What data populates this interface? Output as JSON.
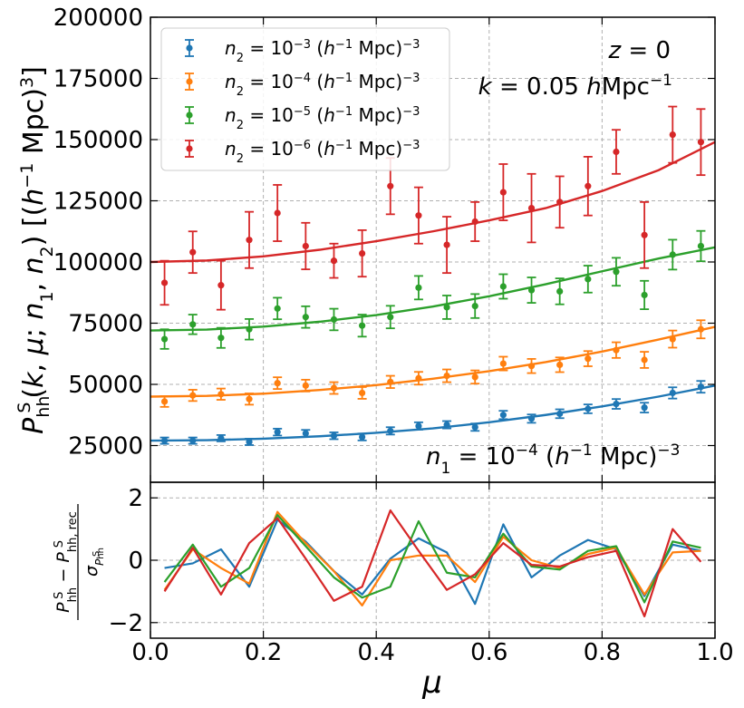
{
  "chart_data": [
    {
      "type": "line+errorbar",
      "panel": "top",
      "xlabel": "μ",
      "ylabel": "P_hh^S(k, μ; n1, n2) [(h^-1 Mpc)^3]",
      "xlim": [
        0.0,
        1.0
      ],
      "ylim": [
        10000,
        200000
      ],
      "xticks": [
        "0.0",
        "0.2",
        "0.4",
        "0.6",
        "0.8",
        "1.0"
      ],
      "yticks": [
        "25000",
        "50000",
        "75000",
        "100000",
        "125000",
        "150000",
        "175000",
        "200000"
      ],
      "grid": true,
      "legend_position": "top-left",
      "annotations": [
        "z = 0",
        "k = 0.05 hMpc^-1",
        "n1 = 10^-4 (h^-1 Mpc)^-3"
      ],
      "annotations_display": {
        "z": [
          "z",
          " = 0"
        ],
        "k": [
          "k",
          " = 0.05 ",
          "h",
          "Mpc",
          "−1"
        ],
        "n1": [
          "n",
          "1",
          " = 10",
          "−4",
          " (",
          "h",
          "−1",
          " Mpc)",
          "−3"
        ]
      },
      "x": [
        0.025,
        0.075,
        0.125,
        0.175,
        0.225,
        0.275,
        0.325,
        0.375,
        0.425,
        0.475,
        0.525,
        0.575,
        0.625,
        0.675,
        0.725,
        0.775,
        0.825,
        0.875,
        0.925,
        0.975
      ],
      "series": [
        {
          "name": "n2 = 10^-3 (h^-1 Mpc)^-3",
          "label_display": [
            "n",
            "2",
            " = 10",
            "−3",
            " (",
            "h",
            "−1",
            " Mpc)",
            "−3"
          ],
          "color": "#1f77b4",
          "points": [
            27000,
            27000,
            28000,
            26500,
            30500,
            30000,
            29000,
            28500,
            31000,
            33000,
            33500,
            32500,
            37500,
            36000,
            38000,
            40000,
            42000,
            40500,
            46500,
            49000
          ],
          "errors": [
            1300,
            1300,
            1300,
            1300,
            1400,
            1400,
            1400,
            1400,
            1500,
            1500,
            1500,
            1500,
            1700,
            1700,
            1800,
            1800,
            2000,
            2000,
            2300,
            2400
          ],
          "model": [
            [
              0,
              27000
            ],
            [
              0.1,
              27200
            ],
            [
              0.2,
              27800
            ],
            [
              0.3,
              28800
            ],
            [
              0.4,
              30200
            ],
            [
              0.5,
              32000
            ],
            [
              0.6,
              34500
            ],
            [
              0.7,
              37500
            ],
            [
              0.8,
              41000
            ],
            [
              0.9,
              45000
            ],
            [
              1.0,
              49500
            ]
          ]
        },
        {
          "name": "n2 = 10^-4 (h^-1 Mpc)^-3",
          "label_display": [
            "n",
            "2",
            " = 10",
            "−4",
            " (",
            "h",
            "−1",
            " Mpc)",
            "−3"
          ],
          "color": "#ff7f0e",
          "points": [
            43000,
            45500,
            46000,
            44000,
            50500,
            49500,
            48500,
            46500,
            51000,
            52500,
            53500,
            53000,
            58500,
            57500,
            58000,
            60500,
            64000,
            60000,
            68500,
            72500
          ],
          "errors": [
            2200,
            2300,
            2300,
            2300,
            2400,
            2400,
            2400,
            2400,
            2500,
            2600,
            2600,
            2700,
            2800,
            2900,
            3000,
            3100,
            3200,
            3300,
            3500,
            3700
          ],
          "model": [
            [
              0,
              45000
            ],
            [
              0.1,
              45300
            ],
            [
              0.2,
              46200
            ],
            [
              0.3,
              47700
            ],
            [
              0.4,
              49700
            ],
            [
              0.5,
              52300
            ],
            [
              0.6,
              55400
            ],
            [
              0.7,
              59100
            ],
            [
              0.8,
              63400
            ],
            [
              0.9,
              68300
            ],
            [
              1.0,
              73500
            ]
          ]
        },
        {
          "name": "n2 = 10^-5 (h^-1 Mpc)^-3",
          "label_display": [
            "n",
            "2",
            " = 10",
            "−5",
            " (",
            "h",
            "−1",
            " Mpc)",
            "−3"
          ],
          "color": "#2ca02c",
          "points": [
            68500,
            74500,
            69000,
            72500,
            81000,
            77500,
            76500,
            74000,
            77500,
            89500,
            81500,
            82000,
            90000,
            88500,
            88000,
            93000,
            96000,
            86500,
            103000,
            106500
          ],
          "errors": [
            4000,
            4000,
            4100,
            4200,
            4400,
            4400,
            4400,
            4500,
            4600,
            4800,
            4800,
            4900,
            5000,
            5200,
            5300,
            5500,
            5700,
            5800,
            6100,
            6200
          ],
          "model": [
            [
              0,
              72000
            ],
            [
              0.1,
              72400
            ],
            [
              0.2,
              73600
            ],
            [
              0.3,
              75600
            ],
            [
              0.4,
              78300
            ],
            [
              0.5,
              81800
            ],
            [
              0.6,
              86000
            ],
            [
              0.7,
              90900
            ],
            [
              0.8,
              96200
            ],
            [
              0.9,
              101400
            ],
            [
              1.0,
              106000
            ]
          ]
        },
        {
          "name": "n2 = 10^-6 (h^-1 Mpc)^-3",
          "label_display": [
            "n",
            "2",
            " = 10",
            "−6",
            " (",
            "h",
            "−1",
            " Mpc)",
            "−3"
          ],
          "color": "#d62728",
          "points": [
            91500,
            104000,
            90500,
            109000,
            120000,
            106500,
            100500,
            103500,
            131000,
            119000,
            107000,
            116500,
            128500,
            122000,
            124500,
            131000,
            145000,
            111000,
            152000,
            149000
          ],
          "errors": [
            9000,
            8500,
            10000,
            11500,
            11500,
            9500,
            7000,
            9500,
            11500,
            11500,
            11500,
            8000,
            11500,
            14000,
            10500,
            12000,
            9000,
            13500,
            11500,
            13500
          ],
          "model": [
            [
              0,
              100000
            ],
            [
              0.1,
              100600
            ],
            [
              0.2,
              102300
            ],
            [
              0.3,
              105000
            ],
            [
              0.4,
              108500
            ],
            [
              0.5,
              112500
            ],
            [
              0.6,
              117000
            ],
            [
              0.7,
              122000
            ],
            [
              0.8,
              129000
            ],
            [
              0.9,
              137500
            ],
            [
              1.0,
              149000
            ]
          ]
        }
      ]
    },
    {
      "type": "line",
      "panel": "bottom",
      "xlabel": "μ",
      "ylabel": "(P_hh^S − P_hh,rec^S) / σ_{P_hh^S}",
      "xlim": [
        0.0,
        1.0
      ],
      "ylim": [
        -2.5,
        2.5
      ],
      "xticks": [
        "0.0",
        "0.2",
        "0.4",
        "0.6",
        "0.8",
        "1.0"
      ],
      "yticks": [
        "−2",
        "0",
        "2"
      ],
      "grid": true,
      "x": [
        0.025,
        0.075,
        0.125,
        0.175,
        0.225,
        0.275,
        0.325,
        0.375,
        0.425,
        0.475,
        0.525,
        0.575,
        0.625,
        0.675,
        0.725,
        0.775,
        0.825,
        0.875,
        0.925,
        0.975
      ],
      "series": [
        {
          "name": "n2 = 10^-3",
          "color": "#1f77b4",
          "values": [
            -0.25,
            -0.1,
            0.35,
            -0.85,
            1.3,
            0.6,
            -0.35,
            -1.1,
            0.05,
            0.7,
            0.25,
            -1.4,
            1.15,
            -0.55,
            0.15,
            0.65,
            0.35,
            -1.15,
            0.5,
            0.3
          ]
        },
        {
          "name": "n2 = 10^-4",
          "color": "#ff7f0e",
          "values": [
            -0.95,
            0.35,
            -0.25,
            -0.75,
            1.55,
            0.55,
            -0.35,
            -1.45,
            0.0,
            0.15,
            0.15,
            -0.7,
            0.75,
            0.0,
            -0.25,
            0.2,
            0.4,
            -1.1,
            0.25,
            0.3
          ]
        },
        {
          "name": "n2 = 10^-5",
          "color": "#2ca02c",
          "values": [
            -0.7,
            0.5,
            -0.85,
            -0.25,
            1.45,
            0.45,
            -0.55,
            -1.2,
            -0.85,
            1.25,
            -0.4,
            -0.55,
            0.85,
            -0.2,
            -0.3,
            0.3,
            0.45,
            -1.35,
            0.6,
            0.4
          ]
        },
        {
          "name": "n2 = 10^-6",
          "color": "#d62728",
          "values": [
            -1.0,
            0.4,
            -1.1,
            0.55,
            1.35,
            0.05,
            -1.3,
            -0.85,
            1.6,
            0.3,
            -0.95,
            -0.45,
            0.55,
            -0.15,
            -0.2,
            0.1,
            0.3,
            -1.8,
            1.0,
            -0.05
          ]
        }
      ]
    }
  ]
}
